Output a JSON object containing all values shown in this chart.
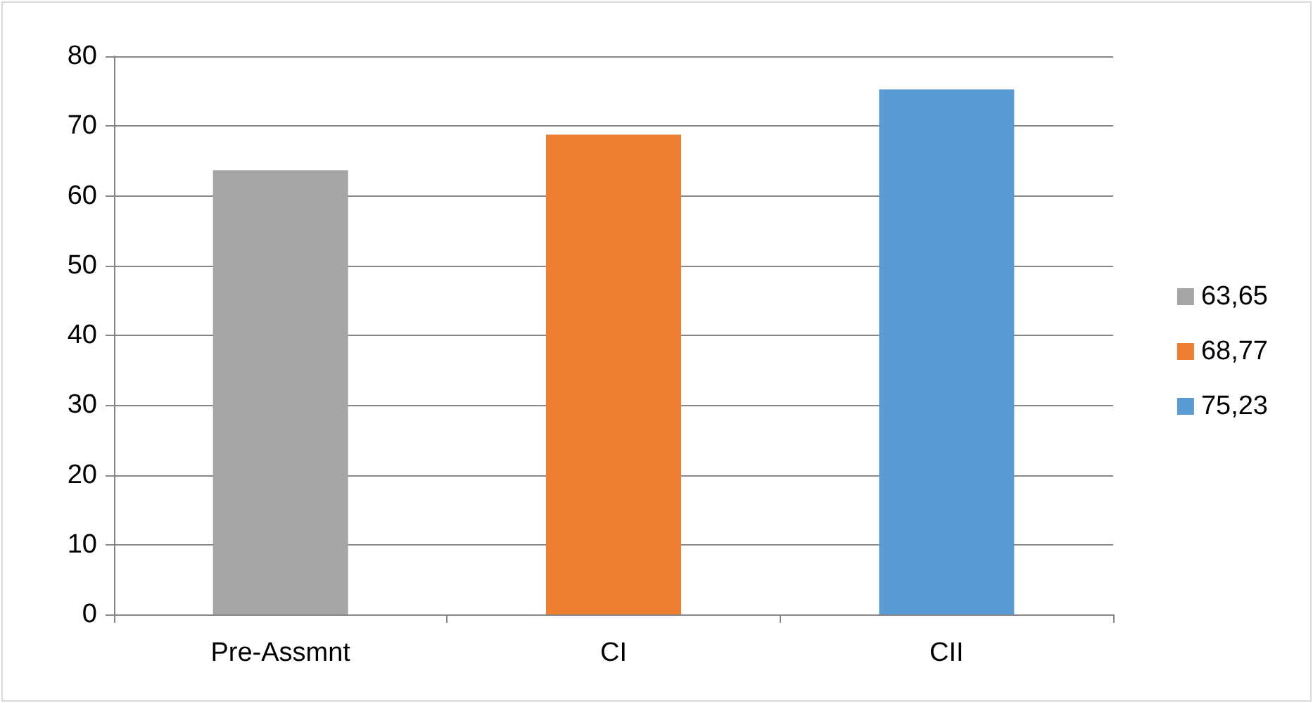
{
  "chart_data": {
    "type": "bar",
    "categories": [
      "Pre-Assmnt",
      "CI",
      "CII"
    ],
    "series": [
      {
        "name": "63,65",
        "color": "#a5a5a5",
        "values": [
          63.65,
          null,
          null
        ]
      },
      {
        "name": "68,77",
        "color": "#ed7d31",
        "values": [
          null,
          68.77,
          null
        ]
      },
      {
        "name": "75,23",
        "color": "#5b9bd5",
        "values": [
          null,
          null,
          75.23
        ]
      }
    ],
    "ylim": [
      0,
      80
    ],
    "yticks": [
      0,
      10,
      20,
      30,
      40,
      50,
      60,
      70,
      80
    ],
    "grid": "y",
    "legend": "right"
  }
}
